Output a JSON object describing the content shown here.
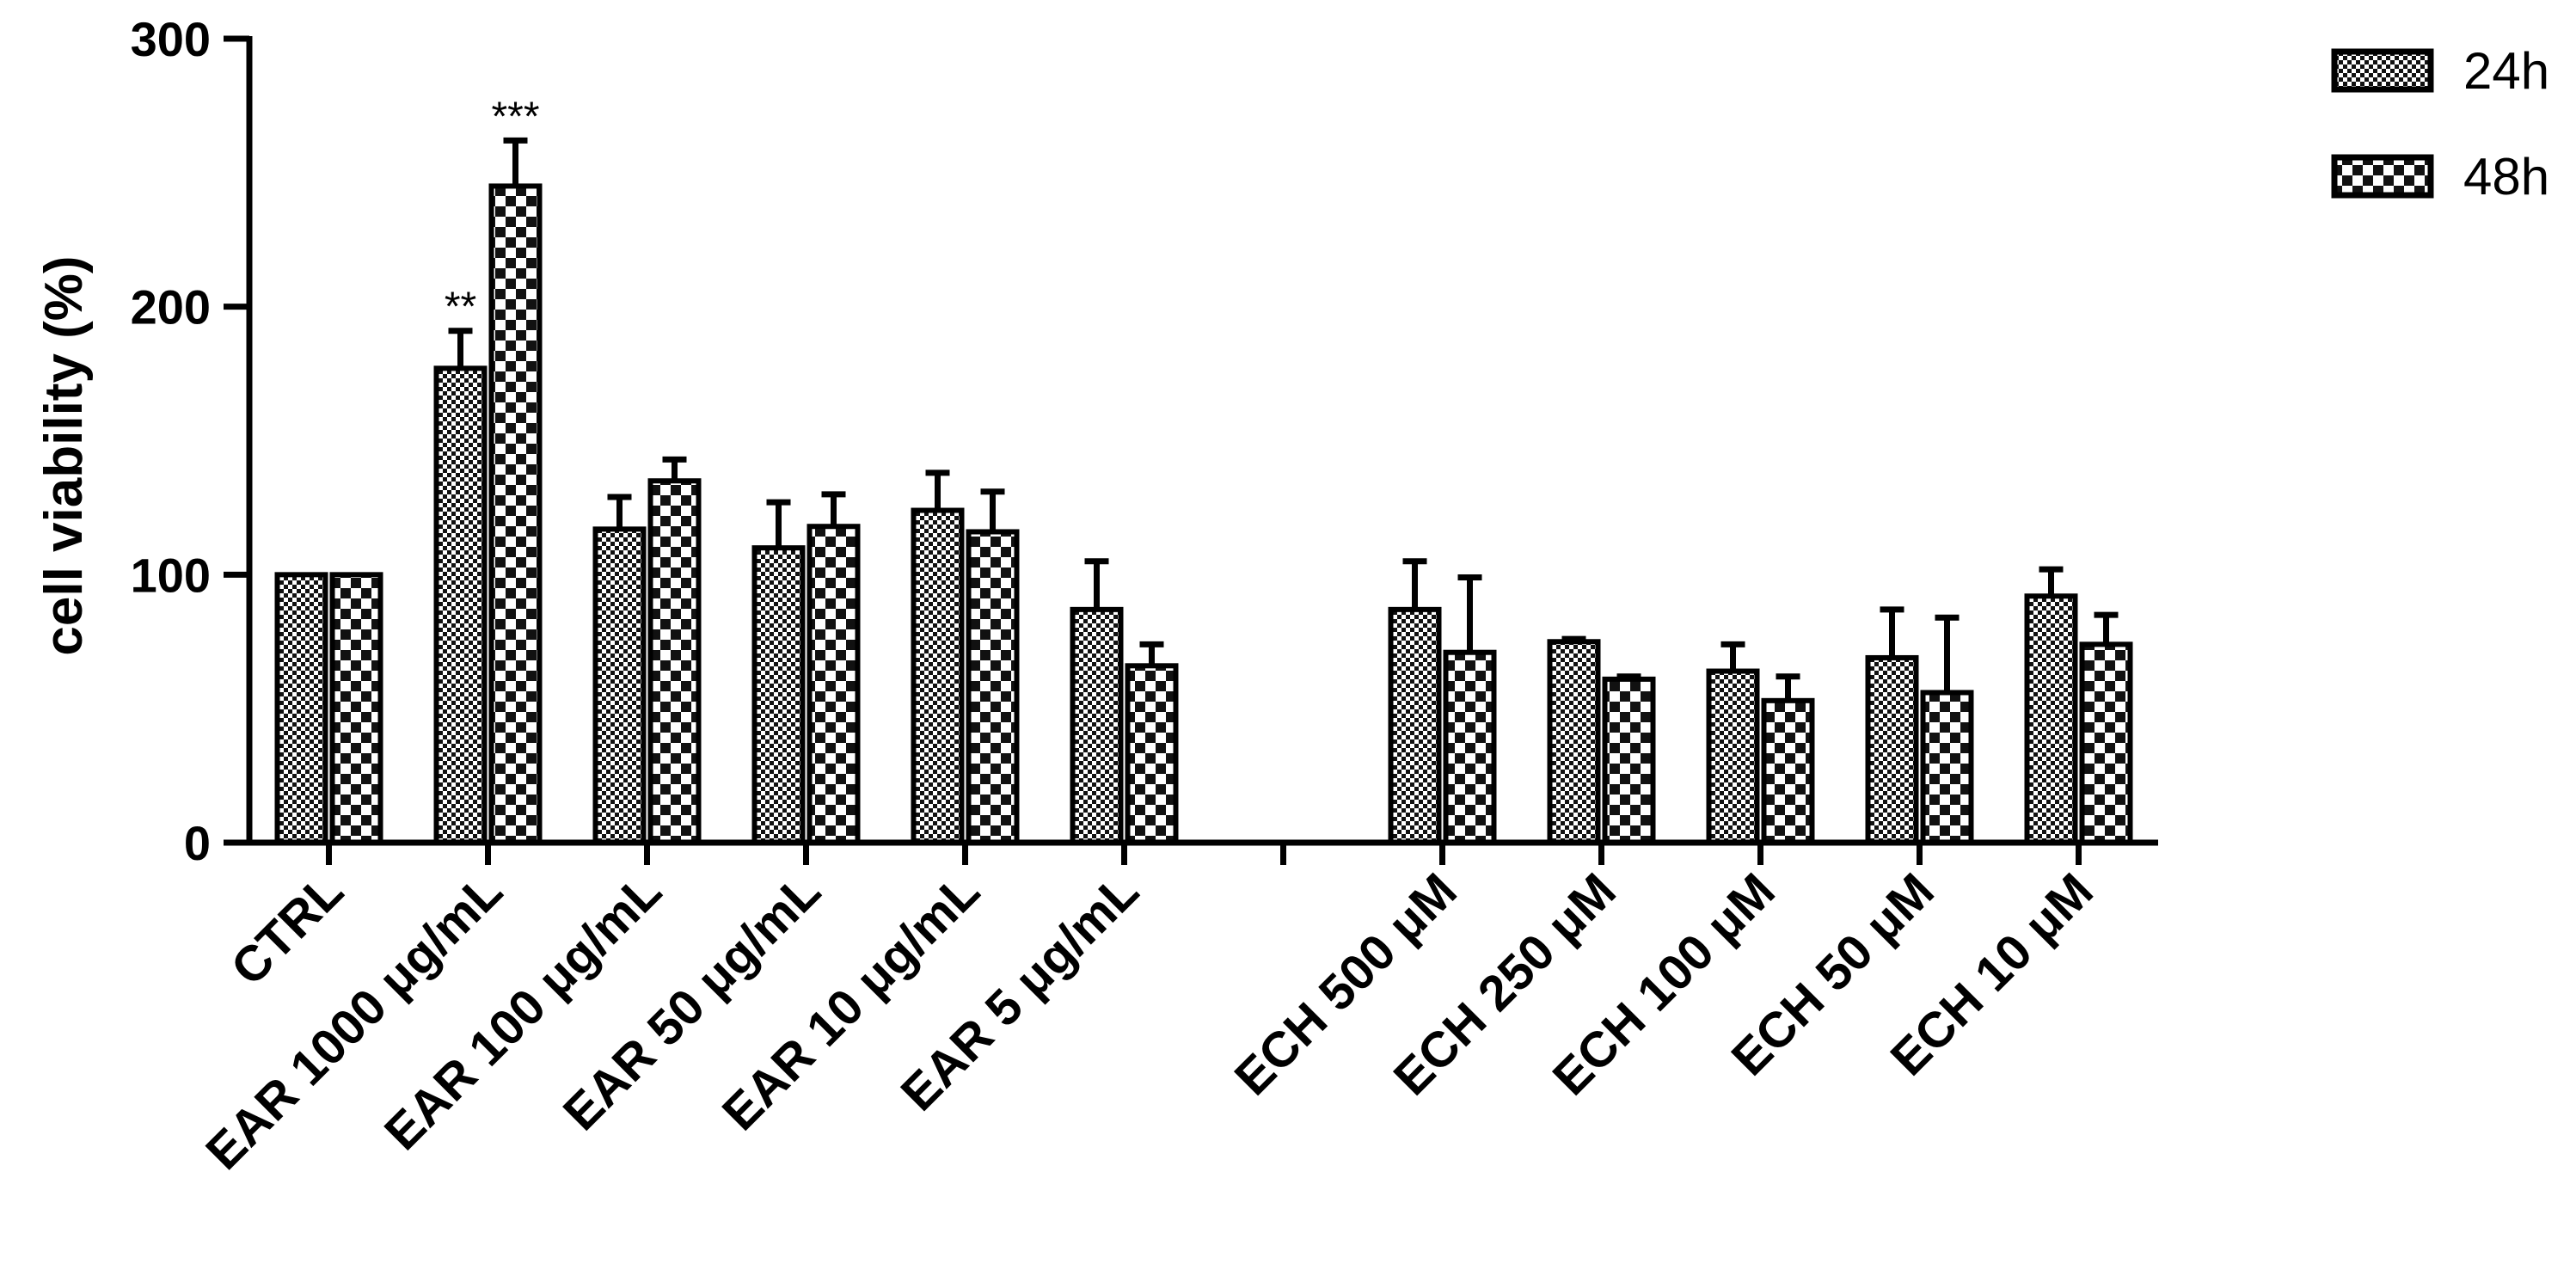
{
  "chart_data": {
    "type": "bar",
    "ylabel": "cell viability (%)",
    "ylim": [
      0,
      300
    ],
    "yticks": [
      "0",
      "100",
      "200",
      "300"
    ],
    "grid": false,
    "legend_position": "top-right",
    "categories": [
      "CTRL",
      "EAR 1000 μg/mL",
      "EAR 100 μg/mL",
      "EAR 50 μg/mL",
      "EAR 10 μg/mL",
      "EAR 5 μg/mL",
      "",
      "ECH 500 μM",
      "ECH 250 μM",
      "ECH 100 μM",
      "ECH 50 μM",
      "ECH 10 μM"
    ],
    "series": [
      {
        "name": "24h",
        "pattern": "checker-fine",
        "values": [
          100,
          177,
          117,
          110,
          124,
          87,
          null,
          87,
          75,
          64,
          69,
          92
        ],
        "errors": [
          0,
          14,
          12,
          17,
          14,
          18,
          null,
          18,
          1,
          10,
          18,
          10
        ]
      },
      {
        "name": "48h",
        "pattern": "checker-coarse",
        "values": [
          100,
          245,
          135,
          118,
          116,
          66,
          null,
          71,
          61,
          53,
          56,
          74
        ],
        "errors": [
          0,
          17,
          8,
          12,
          15,
          8,
          null,
          28,
          1,
          9,
          28,
          11
        ]
      }
    ],
    "annotations": [
      {
        "category": "EAR 1000 μg/mL",
        "series": "24h",
        "text": "**"
      },
      {
        "category": "EAR 1000 μg/mL",
        "series": "48h",
        "text": "***"
      }
    ]
  }
}
